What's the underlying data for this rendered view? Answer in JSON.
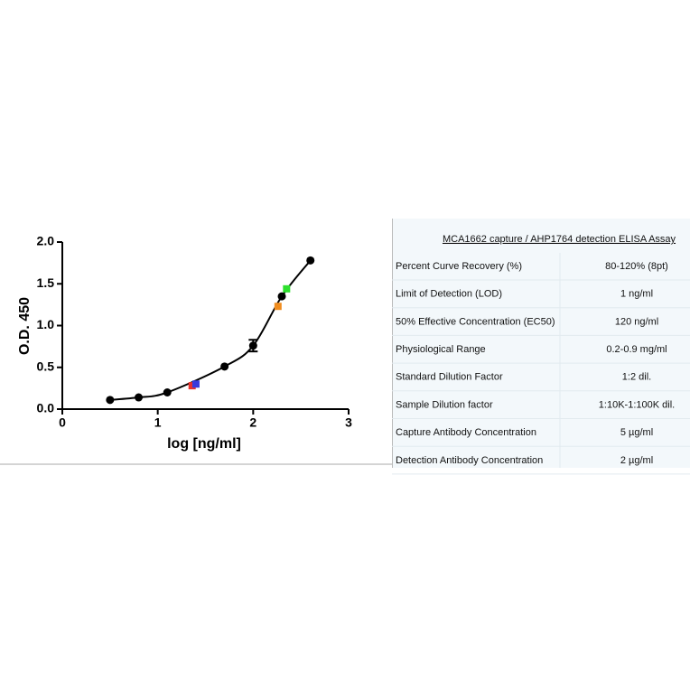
{
  "chart_data": {
    "type": "scatter",
    "x_label": "log [ng/ml]",
    "y_label": "O.D. 450",
    "xlim": [
      0,
      3
    ],
    "ylim": [
      0,
      2
    ],
    "xticks": [
      0,
      1,
      2,
      3
    ],
    "yticks": [
      {
        "value": 0,
        "label": "0.0"
      },
      {
        "value": 0.5,
        "label": "0.5"
      },
      {
        "value": 1,
        "label": "1.0"
      },
      {
        "value": 1.5,
        "label": "1.5"
      },
      {
        "value": 2,
        "label": "2.0"
      }
    ],
    "series": [
      {
        "color": "#000000",
        "marker": "circle",
        "curve": true,
        "x": [
          0.5,
          0.8,
          1.1,
          1.7,
          2.0,
          2.3,
          2.6
        ],
        "values": [
          0.11,
          0.14,
          0.2,
          0.51,
          0.76,
          1.35,
          1.78
        ],
        "errors": [
          null,
          null,
          null,
          null,
          0.07,
          null,
          null
        ]
      },
      {
        "color": "#e8322c",
        "marker": "square",
        "x": [
          1.36
        ],
        "values": [
          0.28
        ]
      },
      {
        "color": "#3a3adc",
        "marker": "square",
        "x": [
          1.4
        ],
        "values": [
          0.3
        ]
      },
      {
        "color": "#f08c1e",
        "marker": "square",
        "x": [
          2.26
        ],
        "values": [
          1.23
        ]
      },
      {
        "color": "#2ee02e",
        "marker": "square",
        "x": [
          2.35
        ],
        "values": [
          1.44
        ]
      }
    ]
  },
  "table": {
    "title": "MCA1662 capture / AHP1764 detection ELISA Assay",
    "rows": [
      [
        "Percent Curve Recovery (%)",
        "80-120% (8pt)"
      ],
      [
        "Limit of Detection (LOD)",
        "1 ng/ml"
      ],
      [
        "50% Effective Concentration (EC50)",
        "120 ng/ml"
      ],
      [
        "Physiological Range",
        "0.2-0.9 mg/ml"
      ],
      [
        "Standard Dilution Factor",
        "1:2 dil."
      ],
      [
        "Sample Dilution factor",
        "1:10K-1:100K dil."
      ],
      [
        "Capture Antibody Concentration",
        "5 µg/ml"
      ],
      [
        "Detection Antibody Concentration",
        "2 µg/ml"
      ]
    ]
  }
}
